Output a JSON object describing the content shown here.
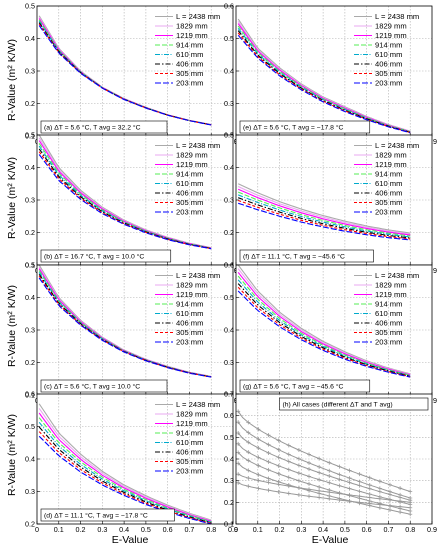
{
  "figure": {
    "ylabel": "R-Value (m² K/W)",
    "xlabel": "E-Value"
  },
  "chart_data": [
    {
      "type": "line",
      "panel": "a",
      "label": "(a) ΔT = 5.6 °C, T avg = 32.2 °C",
      "xlim": [
        0,
        0.9
      ],
      "ylim": [
        0.1,
        0.5
      ],
      "grid": "on",
      "legend_position": "top-right",
      "legend": [
        "L = 2438 mm",
        "1829 mm",
        "1219 mm",
        "914 mm",
        "610 mm",
        "406 mm",
        "305 mm",
        "203 mm"
      ],
      "series": [
        {
          "name": "L = 2438 mm",
          "points": [
            [
              0.01,
              0.47
            ],
            [
              0.1,
              0.37
            ],
            [
              0.2,
              0.3
            ],
            [
              0.3,
              0.25
            ],
            [
              0.4,
              0.215
            ],
            [
              0.5,
              0.188
            ],
            [
              0.6,
              0.165
            ],
            [
              0.7,
              0.148
            ],
            [
              0.8,
              0.135
            ]
          ]
        },
        {
          "name": "203 mm",
          "points": [
            [
              0.01,
              0.44
            ],
            [
              0.1,
              0.355
            ],
            [
              0.2,
              0.293
            ],
            [
              0.3,
              0.247
            ],
            [
              0.4,
              0.212
            ],
            [
              0.5,
              0.186
            ],
            [
              0.6,
              0.164
            ],
            [
              0.7,
              0.147
            ],
            [
              0.8,
              0.134
            ]
          ]
        }
      ]
    },
    {
      "type": "line",
      "panel": "e",
      "label": "(e) ΔT = 5.6 °C, T avg = −17.8 °C",
      "xlim": [
        0,
        0.9
      ],
      "ylim": [
        0.2,
        0.6
      ],
      "grid": "on",
      "legend_position": "top-right",
      "legend": [
        "L = 2438 mm",
        "1829 mm",
        "1219 mm",
        "914 mm",
        "610 mm",
        "406 mm",
        "305 mm",
        "203 mm"
      ],
      "series": [
        {
          "name": "L = 2438 mm",
          "points": [
            [
              0.01,
              0.56
            ],
            [
              0.1,
              0.47
            ],
            [
              0.2,
              0.41
            ],
            [
              0.3,
              0.36
            ],
            [
              0.4,
              0.32
            ],
            [
              0.5,
              0.29
            ],
            [
              0.6,
              0.26
            ],
            [
              0.7,
              0.235
            ],
            [
              0.8,
              0.215
            ]
          ]
        },
        {
          "name": "203 mm",
          "points": [
            [
              0.01,
              0.51
            ],
            [
              0.1,
              0.44
            ],
            [
              0.2,
              0.385
            ],
            [
              0.3,
              0.342
            ],
            [
              0.4,
              0.305
            ],
            [
              0.5,
              0.275
            ],
            [
              0.6,
              0.25
            ],
            [
              0.7,
              0.228
            ],
            [
              0.8,
              0.21
            ]
          ]
        }
      ]
    },
    {
      "type": "line",
      "panel": "b",
      "label": "(b) ΔT = 16.7 °C, T avg = 10.0 °C",
      "xlim": [
        0,
        0.9
      ],
      "ylim": [
        0.1,
        0.5
      ],
      "grid": "on",
      "legend_position": "top-right",
      "legend": [
        "L = 2438 mm",
        "1829 mm",
        "1219 mm",
        "914 mm",
        "610 mm",
        "406 mm",
        "305 mm",
        "203 mm"
      ],
      "series": [
        {
          "name": "L = 2438 mm",
          "points": [
            [
              0.01,
              0.5
            ],
            [
              0.1,
              0.4
            ],
            [
              0.2,
              0.33
            ],
            [
              0.3,
              0.278
            ],
            [
              0.4,
              0.238
            ],
            [
              0.5,
              0.208
            ],
            [
              0.6,
              0.185
            ],
            [
              0.7,
              0.167
            ],
            [
              0.8,
              0.153
            ]
          ]
        },
        {
          "name": "203 mm",
          "points": [
            [
              0.01,
              0.44
            ],
            [
              0.1,
              0.36
            ],
            [
              0.2,
              0.302
            ],
            [
              0.3,
              0.258
            ],
            [
              0.4,
              0.225
            ],
            [
              0.5,
              0.199
            ],
            [
              0.6,
              0.178
            ],
            [
              0.7,
              0.162
            ],
            [
              0.8,
              0.15
            ]
          ]
        }
      ]
    },
    {
      "type": "line",
      "panel": "f",
      "label": "(f) ΔT = 11.1 °C, T avg = −45.6 °C",
      "xlim": [
        0,
        0.9
      ],
      "ylim": [
        0.1,
        0.5
      ],
      "grid": "on",
      "legend_position": "top-right",
      "legend": [
        "L = 2438 mm",
        "1829 mm",
        "1219 mm",
        "914 mm",
        "610 mm",
        "406 mm",
        "305 mm",
        "203 mm"
      ],
      "series": [
        {
          "name": "L = 2438 mm",
          "points": [
            [
              0.01,
              0.35
            ],
            [
              0.1,
              0.322
            ],
            [
              0.2,
              0.295
            ],
            [
              0.3,
              0.272
            ],
            [
              0.4,
              0.252
            ],
            [
              0.5,
              0.235
            ],
            [
              0.6,
              0.22
            ],
            [
              0.7,
              0.208
            ],
            [
              0.8,
              0.198
            ]
          ]
        },
        {
          "name": "203 mm",
          "points": [
            [
              0.01,
              0.29
            ],
            [
              0.1,
              0.27
            ],
            [
              0.2,
              0.25
            ],
            [
              0.3,
              0.232
            ],
            [
              0.4,
              0.217
            ],
            [
              0.5,
              0.204
            ],
            [
              0.6,
              0.193
            ],
            [
              0.7,
              0.184
            ],
            [
              0.8,
              0.177
            ]
          ]
        }
      ]
    },
    {
      "type": "line",
      "panel": "c",
      "label": "(c) ΔT = 5.6 °C, T avg = 10.0 °C",
      "xlim": [
        0,
        0.9
      ],
      "ylim": [
        0.1,
        0.5
      ],
      "grid": "on",
      "legend_position": "top-right",
      "legend": [
        "L = 2438 mm",
        "1829 mm",
        "1219 mm",
        "914 mm",
        "610 mm",
        "406 mm",
        "305 mm",
        "203 mm"
      ],
      "series": [
        {
          "name": "L = 2438 mm",
          "points": [
            [
              0.01,
              0.5
            ],
            [
              0.1,
              0.4
            ],
            [
              0.2,
              0.33
            ],
            [
              0.3,
              0.278
            ],
            [
              0.4,
              0.238
            ],
            [
              0.5,
              0.21
            ],
            [
              0.6,
              0.188
            ],
            [
              0.7,
              0.17
            ],
            [
              0.8,
              0.157
            ]
          ]
        },
        {
          "name": "203 mm",
          "points": [
            [
              0.01,
              0.46
            ],
            [
              0.1,
              0.375
            ],
            [
              0.2,
              0.315
            ],
            [
              0.3,
              0.268
            ],
            [
              0.4,
              0.232
            ],
            [
              0.5,
              0.205
            ],
            [
              0.6,
              0.184
            ],
            [
              0.7,
              0.167
            ],
            [
              0.8,
              0.155
            ]
          ]
        }
      ]
    },
    {
      "type": "line",
      "panel": "g",
      "label": "(g) ΔT = 5.6 °C, T avg = −45.6 °C",
      "xlim": [
        0,
        0.9
      ],
      "ylim": [
        0.2,
        0.6
      ],
      "grid": "on",
      "legend_position": "top-right",
      "legend": [
        "L = 2438 mm",
        "1829 mm",
        "1219 mm",
        "914 mm",
        "610 mm",
        "406 mm",
        "305 mm",
        "203 mm"
      ],
      "series": [
        {
          "name": "L = 2438 mm",
          "points": [
            [
              0.01,
              0.6
            ],
            [
              0.1,
              0.52
            ],
            [
              0.2,
              0.455
            ],
            [
              0.3,
              0.405
            ],
            [
              0.4,
              0.365
            ],
            [
              0.5,
              0.333
            ],
            [
              0.6,
              0.305
            ],
            [
              0.7,
              0.283
            ],
            [
              0.8,
              0.265
            ]
          ]
        },
        {
          "name": "203 mm",
          "points": [
            [
              0.01,
              0.52
            ],
            [
              0.1,
              0.46
            ],
            [
              0.2,
              0.41
            ],
            [
              0.3,
              0.37
            ],
            [
              0.4,
              0.337
            ],
            [
              0.5,
              0.31
            ],
            [
              0.6,
              0.288
            ],
            [
              0.7,
              0.27
            ],
            [
              0.8,
              0.255
            ]
          ]
        }
      ]
    },
    {
      "type": "line",
      "panel": "d",
      "label": "(d) ΔT = 11.1 °C, T avg = −17.8 °C",
      "xlim": [
        0,
        0.9
      ],
      "ylim": [
        0.2,
        0.6
      ],
      "grid": "on",
      "legend_position": "top-right",
      "legend": [
        "L = 2438 mm",
        "1829 mm",
        "1219 mm",
        "914 mm",
        "610 mm",
        "406 mm",
        "305 mm",
        "203 mm"
      ],
      "series": [
        {
          "name": "L = 2438 mm",
          "points": [
            [
              0.01,
              0.57
            ],
            [
              0.1,
              0.48
            ],
            [
              0.2,
              0.415
            ],
            [
              0.3,
              0.362
            ],
            [
              0.4,
              0.32
            ],
            [
              0.5,
              0.287
            ],
            [
              0.6,
              0.258
            ],
            [
              0.7,
              0.233
            ],
            [
              0.8,
              0.212
            ]
          ]
        },
        {
          "name": "203 mm",
          "points": [
            [
              0.01,
              0.47
            ],
            [
              0.1,
              0.41
            ],
            [
              0.2,
              0.36
            ],
            [
              0.3,
              0.32
            ],
            [
              0.4,
              0.288
            ],
            [
              0.5,
              0.26
            ],
            [
              0.6,
              0.237
            ],
            [
              0.7,
              0.217
            ],
            [
              0.8,
              0.2
            ]
          ]
        }
      ]
    },
    {
      "type": "line",
      "panel": "h",
      "label": "(h) All cases (different ΔT and T avg)",
      "xlim": [
        0,
        0.9
      ],
      "ylim": [
        0.1,
        0.7
      ],
      "grid": "on",
      "legend_position": "top-right",
      "series_color": "#999999",
      "curves": [
        {
          "start": 0.62,
          "end": 0.25
        },
        {
          "start": 0.57,
          "end": 0.22
        },
        {
          "start": 0.52,
          "end": 0.21
        },
        {
          "start": 0.47,
          "end": 0.19
        },
        {
          "start": 0.43,
          "end": 0.16
        },
        {
          "start": 0.38,
          "end": 0.145
        },
        {
          "start": 0.33,
          "end": 0.2
        },
        {
          "start": 0.29,
          "end": 0.175
        }
      ]
    }
  ],
  "colors": {
    "L = 2438 mm": "#aaaaaa",
    "1829 mm": "#e8a8f0",
    "1219 mm": "#ff00ff",
    "914 mm": "#66ff66",
    "610 mm": "#00aacc",
    "406 mm": "#000000",
    "305 mm": "#ff0000",
    "203 mm": "#0000ff"
  }
}
